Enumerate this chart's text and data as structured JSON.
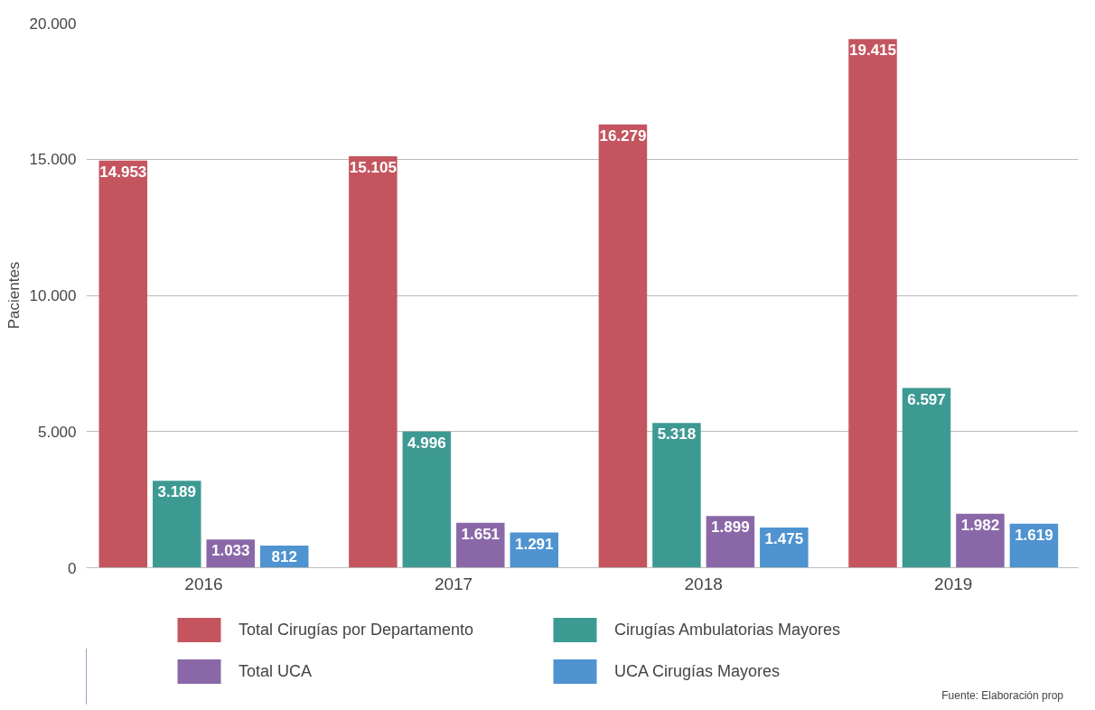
{
  "chart_data": {
    "type": "bar",
    "ylabel": "Pacientes",
    "categories": [
      "2016",
      "2017",
      "2018",
      "2019"
    ],
    "series": [
      {
        "name": "Total Cirugías por Departamento",
        "color": "#c4555f",
        "values": [
          14953,
          15105,
          16279,
          19415
        ],
        "value_labels": [
          "14.953",
          "15.105",
          "16.279",
          "19.415"
        ]
      },
      {
        "name": "Cirugías Ambulatorias Mayores",
        "color": "#3d9a93",
        "values": [
          3189,
          4996,
          5318,
          6597
        ],
        "value_labels": [
          "3.189",
          "4.996",
          "5.318",
          "6.597"
        ]
      },
      {
        "name": "Total UCA",
        "color": "#8a68a8",
        "values": [
          1033,
          1651,
          1899,
          1982
        ],
        "value_labels": [
          "1.033",
          "1.651",
          "1.899",
          "1.982"
        ]
      },
      {
        "name": "UCA Cirugías Mayores",
        "color": "#4f93d0",
        "values": [
          812,
          1291,
          1475,
          1619
        ],
        "value_labels": [
          "812",
          "1.291",
          "1.475",
          "1.619"
        ]
      }
    ],
    "ylim": [
      0,
      20000
    ],
    "yticks": [
      {
        "value": 0,
        "label": "0"
      },
      {
        "value": 5000,
        "label": "5.000"
      },
      {
        "value": 10000,
        "label": "10.000"
      },
      {
        "value": 15000,
        "label": "15.000"
      },
      {
        "value": 20000,
        "label": "20.000"
      }
    ],
    "grid": "y",
    "legend": "bottom",
    "annotations": [
      "Fuente: Elaboración prop"
    ]
  }
}
